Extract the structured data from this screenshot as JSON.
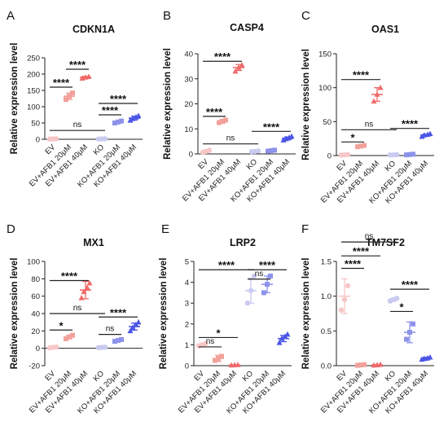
{
  "chart_data": [
    {
      "type": "scatter",
      "panel": "A",
      "title": "CDKN1A",
      "ylabel": "Relative expression level",
      "ylim": [
        0,
        250
      ],
      "yticks": [
        0,
        50,
        100,
        150,
        200,
        250
      ],
      "categories": [
        "EV",
        "EV+AFB1 20μM",
        "EV+AFB1 40μM",
        "KO",
        "KO+AFB1 20μM",
        "KO+AFB1 40μM"
      ],
      "groups": [
        {
          "points": [
            0.6,
            1.0,
            1.5
          ],
          "mean": 1.0,
          "sd": 0.4,
          "color": "#f7c6c6"
        },
        {
          "points": [
            122,
            132,
            142
          ],
          "mean": 132,
          "sd": 10,
          "color": "#f2a19a"
        },
        {
          "points": [
            187,
            190,
            192
          ],
          "mean": 190,
          "sd": 3,
          "color": "#f06a6a"
        },
        {
          "points": [
            0.6,
            1.0,
            1.3
          ],
          "mean": 1.0,
          "sd": 0.3,
          "color": "#c9caf0"
        },
        {
          "points": [
            50,
            53,
            56
          ],
          "mean": 53,
          "sd": 3,
          "color": "#8d93ea"
        },
        {
          "points": [
            58,
            63,
            68,
            72
          ],
          "mean": 65,
          "sd": 6,
          "color": "#4a55e6"
        }
      ],
      "annotations": [
        {
          "text": "****",
          "from": 1,
          "to": 2,
          "y": 215
        },
        {
          "text": "****",
          "from": 0,
          "to": 1,
          "y": 160
        },
        {
          "text": "ns",
          "from": 0,
          "to": 3,
          "y": 27
        },
        {
          "text": "****",
          "from": 3,
          "to": 5,
          "y": 110
        },
        {
          "text": "****",
          "from": 3,
          "to": 4,
          "y": 75
        }
      ]
    },
    {
      "type": "scatter",
      "panel": "B",
      "title": "CASP4",
      "ylabel": "Relative expression level",
      "ylim": [
        0,
        40
      ],
      "yticks": [
        0,
        10,
        20,
        30,
        40
      ],
      "categories": [
        "EV",
        "EV+AFB1 20μM",
        "EV+AFB1 40μM",
        "KO",
        "KO+AFB1 20μM",
        "KO+AFB1 40μM"
      ],
      "groups": [
        {
          "points": [
            0.6,
            1.0,
            1.5
          ],
          "mean": 1.0,
          "sd": 0.5,
          "color": "#f7c6c6"
        },
        {
          "points": [
            12.5,
            13.0,
            13.5
          ],
          "mean": 13,
          "sd": 0.6,
          "color": "#f2a19a"
        },
        {
          "points": [
            33.0,
            34.5,
            35.5
          ],
          "mean": 34.5,
          "sd": 1.2,
          "color": "#f06a6a"
        },
        {
          "points": [
            0.9,
            1.0,
            1.2
          ],
          "mean": 1.0,
          "sd": 0.15,
          "color": "#c9caf0"
        },
        {
          "points": [
            1.1,
            1.3,
            1.5
          ],
          "mean": 1.3,
          "sd": 0.2,
          "color": "#8d93ea"
        },
        {
          "points": [
            5.5,
            6.0,
            6.5,
            7.0
          ],
          "mean": 6.2,
          "sd": 0.6,
          "color": "#4a55e6"
        }
      ],
      "annotations": [
        {
          "text": "****",
          "from": 0,
          "to": 2,
          "y": 37
        },
        {
          "text": "****",
          "from": 0,
          "to": 1,
          "y": 15
        },
        {
          "text": "ns",
          "from": 0,
          "to": 3,
          "y": 4
        },
        {
          "text": "****",
          "from": 3,
          "to": 5,
          "y": 9
        }
      ]
    },
    {
      "type": "scatter",
      "panel": "C",
      "title": "OAS1",
      "ylabel": "Relative expression level",
      "ylim": [
        0,
        150
      ],
      "yticks": [
        0,
        50,
        100,
        150
      ],
      "categories": [
        "EV",
        "EV+AFB1 20μM",
        "EV+AFB1 40μM",
        "KO",
        "KO+AFB1 20μM",
        "KO+AFB1 40μM"
      ],
      "groups": [
        {
          "points": [
            0.6,
            1.0,
            1.5
          ],
          "mean": 1.0,
          "sd": 0.5,
          "color": "#f7c6c6"
        },
        {
          "points": [
            13,
            14,
            15
          ],
          "mean": 14,
          "sd": 1,
          "color": "#f2a19a"
        },
        {
          "points": [
            80,
            90,
            100
          ],
          "mean": 90,
          "sd": 10,
          "color": "#f06a6a"
        },
        {
          "points": [
            0.8,
            1.0,
            1.3
          ],
          "mean": 1.0,
          "sd": 0.3,
          "color": "#c9caf0"
        },
        {
          "points": [
            1.0,
            1.5,
            2.0
          ],
          "mean": 1.5,
          "sd": 0.5,
          "color": "#8d93ea"
        },
        {
          "points": [
            28,
            30,
            31,
            32
          ],
          "mean": 30,
          "sd": 1.5,
          "color": "#4a55e6"
        }
      ],
      "annotations": [
        {
          "text": "****",
          "from": 0,
          "to": 2,
          "y": 112
        },
        {
          "text": "*",
          "from": 0,
          "to": 1,
          "y": 20
        },
        {
          "text": "ns",
          "from": 0,
          "to": 3,
          "y": 38
        },
        {
          "text": "****",
          "from": 3,
          "to": 5,
          "y": 40
        }
      ]
    },
    {
      "type": "scatter",
      "panel": "D",
      "title": "MX1",
      "ylabel": "Relative expression level",
      "ylim": [
        -20,
        100
      ],
      "yticks": [
        -20,
        0,
        20,
        40,
        60,
        80,
        100
      ],
      "categories": [
        "EV",
        "EV+AFB1 20μM",
        "EV+AFB1 40μM",
        "KO",
        "KO+AFB1 20μM",
        "KO+AFB1 40μM"
      ],
      "groups": [
        {
          "points": [
            0.5,
            1.0,
            1.5
          ],
          "mean": 1.0,
          "sd": 0.5,
          "color": "#f7c6c6"
        },
        {
          "points": [
            11,
            13,
            15
          ],
          "mean": 13,
          "sd": 2,
          "color": "#f2a19a"
        },
        {
          "points": [
            58,
            65,
            70,
            75
          ],
          "mean": 67,
          "sd": 10,
          "color": "#f06a6a"
        },
        {
          "points": [
            0.8,
            1.0,
            1.3
          ],
          "mean": 1.0,
          "sd": 0.3,
          "color": "#c9caf0"
        },
        {
          "points": [
            8,
            9,
            10
          ],
          "mean": 9,
          "sd": 1,
          "color": "#8d93ea"
        },
        {
          "points": [
            20,
            24,
            27,
            30
          ],
          "mean": 25,
          "sd": 4,
          "color": "#4a55e6"
        }
      ],
      "annotations": [
        {
          "text": "****",
          "from": 0,
          "to": 2,
          "y": 78
        },
        {
          "text": "*",
          "from": 0,
          "to": 1,
          "y": 21
        },
        {
          "text": "ns",
          "from": 0,
          "to": 3,
          "y": 40
        },
        {
          "text": "****",
          "from": 3,
          "to": 5,
          "y": 36
        },
        {
          "text": "ns",
          "from": 3,
          "to": 4,
          "y": 16
        }
      ]
    },
    {
      "type": "scatter",
      "panel": "E",
      "title": "LRP2",
      "ylabel": "Relative expression level",
      "ylim": [
        0,
        5
      ],
      "yticks": [
        0,
        1,
        2,
        3,
        4,
        5
      ],
      "categories": [
        "EV",
        "EV+AFB1 20μM",
        "EV+AFB1 40μM",
        "KO",
        "KO+AFB1 20μM",
        "KO+AFB1 40μM"
      ],
      "groups": [
        {
          "points": [
            0.95,
            1.0,
            1.05
          ],
          "mean": 1.0,
          "sd": 0.05,
          "color": "#f7c6c6"
        },
        {
          "points": [
            0.25,
            0.35,
            0.45
          ],
          "mean": 0.35,
          "sd": 0.15,
          "color": "#f2a19a"
        },
        {
          "points": [
            0.02,
            0.03,
            0.04
          ],
          "mean": 0.03,
          "sd": 0.01,
          "color": "#f06a6a"
        },
        {
          "points": [
            3.0,
            3.6,
            4.3
          ],
          "mean": 3.6,
          "sd": 0.6,
          "color": "#c9caf0"
        },
        {
          "points": [
            3.5,
            3.9,
            4.3
          ],
          "mean": 3.9,
          "sd": 0.4,
          "color": "#8d93ea"
        },
        {
          "points": [
            1.1,
            1.3,
            1.4,
            1.5
          ],
          "mean": 1.3,
          "sd": 0.15,
          "color": "#4a55e6"
        }
      ],
      "annotations": [
        {
          "text": "****",
          "from": 0,
          "to": 3,
          "y": 4.6
        },
        {
          "text": "ns",
          "from": 0,
          "to": 1,
          "y": 0.9
        },
        {
          "text": "*",
          "from": 0,
          "to": 2,
          "y": 1.35
        },
        {
          "text": "****",
          "from": 3,
          "to": 5,
          "y": 4.6
        },
        {
          "text": "ns",
          "from": 3,
          "to": 4,
          "y": 4.15
        }
      ]
    },
    {
      "type": "scatter",
      "panel": "F",
      "title": "TM7SF2",
      "ylabel": "Relative expression level",
      "ylim": [
        0,
        1.5
      ],
      "yticks": [
        0,
        0.5,
        1.0,
        1.5
      ],
      "ytick_labels": [
        "0.0",
        "0.5",
        "1.0",
        "1.5"
      ],
      "categories": [
        "EV",
        "EV+AFB1 20μM",
        "EV+AFB1 40μM",
        "KO",
        "KO+AFB1 20μM",
        "KO+AFB1 40μM"
      ],
      "groups": [
        {
          "points": [
            0.8,
            0.95,
            1.15
          ],
          "mean": 1.0,
          "sd": 0.25,
          "color": "#f7c6c6"
        },
        {
          "points": [
            0.005,
            0.01,
            0.015
          ],
          "mean": 0.01,
          "sd": 0.005,
          "color": "#f2a19a"
        },
        {
          "points": [
            0.005,
            0.01,
            0.015
          ],
          "mean": 0.01,
          "sd": 0.005,
          "color": "#f06a6a"
        },
        {
          "points": [
            0.93,
            0.95,
            0.97
          ],
          "mean": 0.95,
          "sd": 0.02,
          "color": "#c9caf0"
        },
        {
          "points": [
            0.38,
            0.48,
            0.6
          ],
          "mean": 0.48,
          "sd": 0.15,
          "color": "#8d93ea"
        },
        {
          "points": [
            0.09,
            0.1,
            0.11,
            0.12
          ],
          "mean": 0.1,
          "sd": 0.02,
          "color": "#4a55e6"
        }
      ],
      "annotations": [
        {
          "text": "ns",
          "from": 0,
          "to": 3,
          "y": 1.78
        },
        {
          "text": "****",
          "from": 0,
          "to": 1,
          "y": 1.4
        },
        {
          "text": "****",
          "from": 0,
          "to": 2,
          "y": 1.58
        },
        {
          "text": "****",
          "from": 3,
          "to": 5,
          "y": 1.1
        },
        {
          "text": "*",
          "from": 3,
          "to": 4,
          "y": 0.78
        }
      ]
    }
  ]
}
